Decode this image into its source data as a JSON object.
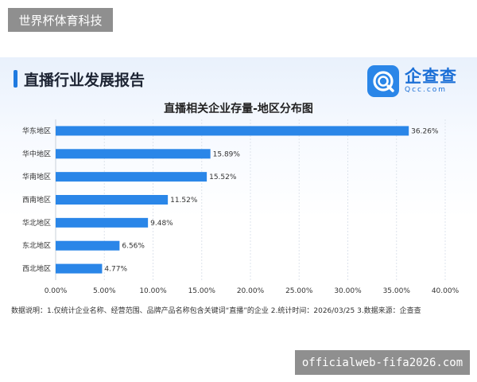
{
  "watermarks": {
    "top": "世界杯体育科技",
    "bottom": "officialweb-fifa2026.com"
  },
  "header": {
    "report_title": "直播行业发展报告",
    "logo_name": "企查查",
    "logo_sub": "Qcc.com",
    "accent": "#1f7ae0"
  },
  "chart_data": {
    "type": "bar",
    "orientation": "horizontal",
    "title": "直播相关企业存量-地区分布图",
    "categories": [
      "华东地区",
      "华中地区",
      "华南地区",
      "西南地区",
      "华北地区",
      "东北地区",
      "西北地区"
    ],
    "values": [
      36.26,
      15.89,
      15.52,
      11.52,
      9.48,
      6.56,
      4.77
    ],
    "value_labels": [
      "36.26%",
      "15.89%",
      "15.52%",
      "11.52%",
      "9.48%",
      "6.56%",
      "4.77%"
    ],
    "xlim": [
      0,
      40
    ],
    "xticks": [
      0,
      5,
      10,
      15,
      20,
      25,
      30,
      35,
      40
    ],
    "xtick_labels": [
      "0.00%",
      "5.00%",
      "10.00%",
      "15.00%",
      "20.00%",
      "25.00%",
      "30.00%",
      "35.00%",
      "40.00%"
    ],
    "grid": true,
    "bar_color": "#2a86e8"
  },
  "footnote": "数据说明：1.仅统计企业名称、经营范围、品牌产品名称包含关键词“直播”的企业 2.统计时间：2026/03/25 3.数据来源：企查查"
}
